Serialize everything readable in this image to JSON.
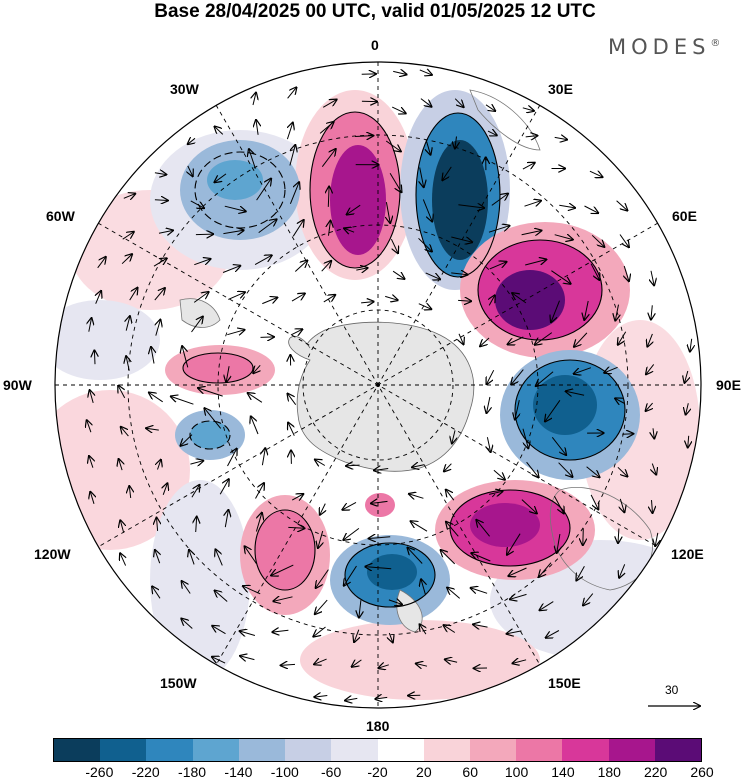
{
  "title": "Base 28/04/2025 00 UTC, valid 01/05/2025 12 UTC",
  "brand": "MODES",
  "brand_mark": "®",
  "lon_labels": {
    "n": "0",
    "e30": "30E",
    "e60": "60E",
    "e90": "90E",
    "e120": "120E",
    "e150": "150E",
    "s": "180",
    "w150": "150W",
    "w120": "120W",
    "w90": "90W",
    "w60": "60W",
    "w30": "30W"
  },
  "vector_scale_label": "30",
  "colorbar": {
    "colors": [
      "#0b3d5c",
      "#10608f",
      "#2f86bd",
      "#5ea5d0",
      "#9ab9da",
      "#c7cfe5",
      "#e6e6f1",
      "#ffffff",
      "#f9d3d9",
      "#f3a8bb",
      "#ec77a6",
      "#d8379a",
      "#a7168d",
      "#5b0c76"
    ],
    "tick_labels": [
      "-260",
      "-220",
      "-180",
      "-140",
      "-100",
      "-60",
      "-20",
      "20",
      "60",
      "100",
      "140",
      "180",
      "220",
      "260"
    ]
  },
  "map": {
    "projection": "south-polar-stereographic",
    "ocean_background": "#ffffff",
    "antarctica_color": "#e6e6e6",
    "anomaly_centers": [
      {
        "sign": "positive",
        "lon": "0"
      },
      {
        "sign": "negative",
        "lon": "30E"
      },
      {
        "sign": "positive",
        "lon": "60E"
      },
      {
        "sign": "negative",
        "lon": "90E"
      },
      {
        "sign": "positive",
        "lon": "125E"
      },
      {
        "sign": "negative",
        "lon": "160E"
      },
      {
        "sign": "positive",
        "lon": "140W"
      },
      {
        "sign": "positive",
        "lon": "85W"
      },
      {
        "sign": "negative",
        "lon": "40W"
      }
    ]
  }
}
